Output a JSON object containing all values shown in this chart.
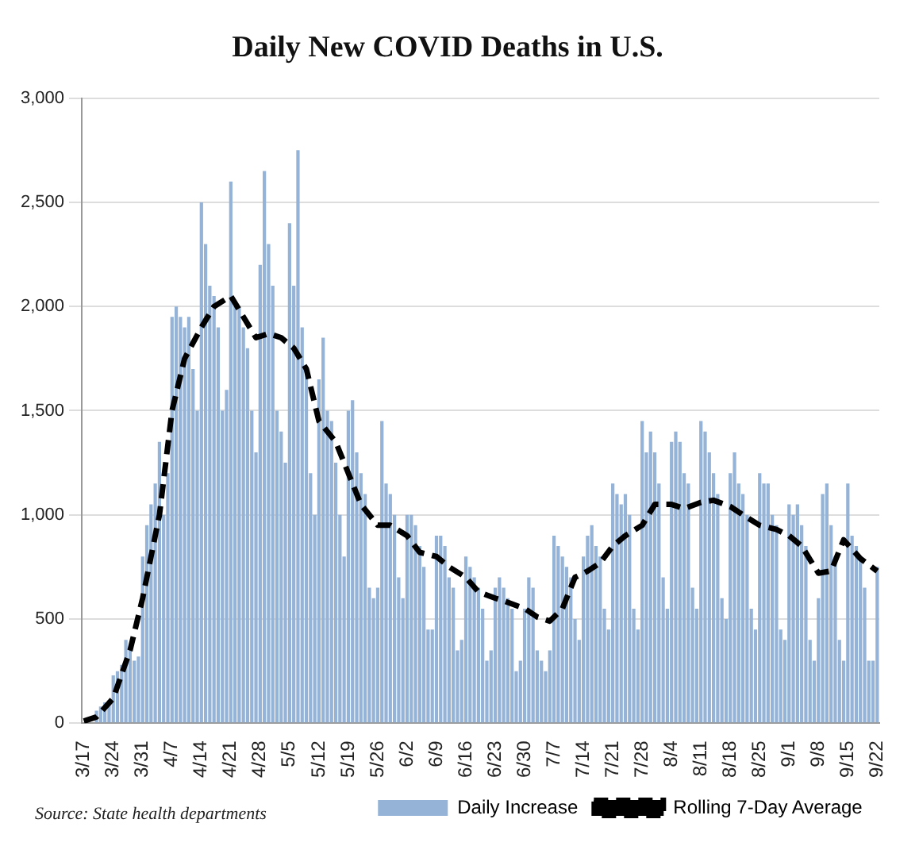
{
  "chart_data": {
    "type": "bar",
    "title": "Daily New COVID Deaths in U.S.",
    "categories": [
      "3/17",
      null,
      null,
      null,
      null,
      null,
      null,
      "3/24",
      null,
      null,
      null,
      null,
      null,
      null,
      "3/31",
      null,
      null,
      null,
      null,
      null,
      null,
      "4/7",
      null,
      null,
      null,
      null,
      null,
      null,
      "4/14",
      null,
      null,
      null,
      null,
      null,
      null,
      "4/21",
      null,
      null,
      null,
      null,
      null,
      null,
      "4/28",
      null,
      null,
      null,
      null,
      null,
      null,
      "5/5",
      null,
      null,
      null,
      null,
      null,
      null,
      "5/12",
      null,
      null,
      null,
      null,
      null,
      null,
      "5/19",
      null,
      null,
      null,
      null,
      null,
      null,
      "5/26",
      null,
      null,
      null,
      null,
      null,
      null,
      "6/2",
      null,
      null,
      null,
      null,
      null,
      null,
      "6/9",
      null,
      null,
      null,
      null,
      null,
      null,
      "6/16",
      null,
      null,
      null,
      null,
      null,
      null,
      "6/23",
      null,
      null,
      null,
      null,
      null,
      null,
      "6/30",
      null,
      null,
      null,
      null,
      null,
      null,
      "7/7",
      null,
      null,
      null,
      null,
      null,
      null,
      "7/14",
      null,
      null,
      null,
      null,
      null,
      null,
      "7/21",
      null,
      null,
      null,
      null,
      null,
      null,
      "7/28",
      null,
      null,
      null,
      null,
      null,
      null,
      "8/4",
      null,
      null,
      null,
      null,
      null,
      null,
      "8/11",
      null,
      null,
      null,
      null,
      null,
      null,
      "8/18",
      null,
      null,
      null,
      null,
      null,
      null,
      "8/25",
      null,
      null,
      null,
      null,
      null,
      null,
      "9/1",
      null,
      null,
      null,
      null,
      null,
      null,
      "9/8",
      null,
      null,
      null,
      null,
      null,
      null,
      "9/15",
      null,
      null,
      null,
      null,
      null,
      null,
      "9/22"
    ],
    "series": [
      {
        "name": "Daily Increase",
        "color": "#95b3d7",
        "values": [
          null,
          null,
          null,
          60,
          80,
          100,
          110,
          230,
          250,
          280,
          400,
          350,
          300,
          320,
          800,
          950,
          1050,
          1150,
          1350,
          1000,
          1200,
          1950,
          2000,
          1950,
          1900,
          1950,
          1700,
          1500,
          2500,
          2300,
          2100,
          2050,
          1900,
          1500,
          1600,
          2600,
          2000,
          2000,
          1900,
          1800,
          1500,
          1300,
          2200,
          2650,
          2300,
          2100,
          1500,
          1400,
          1250,
          2400,
          2100,
          2750,
          1900,
          1700,
          1200,
          1000,
          1650,
          1850,
          1500,
          1450,
          1250,
          1000,
          800,
          1500,
          1550,
          1300,
          1200,
          1100,
          650,
          600,
          650,
          1450,
          1150,
          1100,
          1000,
          700,
          600,
          1000,
          1000,
          950,
          850,
          750,
          450,
          450,
          900,
          900,
          850,
          700,
          650,
          350,
          400,
          800,
          750,
          700,
          650,
          550,
          300,
          350,
          650,
          700,
          650,
          600,
          550,
          250,
          300,
          550,
          700,
          650,
          350,
          300,
          250,
          350,
          900,
          850,
          800,
          750,
          700,
          500,
          400,
          800,
          900,
          950,
          850,
          800,
          550,
          450,
          1150,
          1100,
          1050,
          1100,
          1000,
          550,
          450,
          1450,
          1300,
          1400,
          1300,
          1150,
          700,
          550,
          1350,
          1400,
          1350,
          1200,
          1150,
          650,
          550,
          1450,
          1400,
          1300,
          1200,
          1100,
          600,
          500,
          1200,
          1300,
          1150,
          1100,
          1000,
          550,
          450,
          1200,
          1150,
          1150,
          1000,
          950,
          450,
          400,
          1050,
          1000,
          1050,
          950,
          850,
          400,
          300,
          600,
          1100,
          1150,
          950,
          800,
          400,
          300,
          1150,
          900,
          850,
          800,
          650,
          300,
          300,
          750
        ]
      },
      {
        "name": "Rolling 7-Day Average",
        "type": "line",
        "color": "#000000",
        "line_style": "dashed",
        "marker": "none",
        "values": [
          10,
          null,
          null,
          30,
          null,
          null,
          null,
          120,
          null,
          null,
          null,
          350,
          null,
          null,
          600,
          null,
          null,
          null,
          1000,
          null,
          null,
          1500,
          null,
          null,
          1750,
          null,
          null,
          null,
          1900,
          null,
          null,
          2000,
          null,
          null,
          null,
          2050,
          null,
          null,
          1950,
          null,
          null,
          1850,
          null,
          null,
          1870,
          null,
          null,
          1850,
          null,
          null,
          1800,
          null,
          null,
          1700,
          null,
          null,
          1450,
          null,
          null,
          null,
          1350,
          null,
          null,
          1200,
          null,
          null,
          1050,
          null,
          null,
          null,
          950,
          null,
          null,
          950,
          null,
          null,
          null,
          900,
          null,
          null,
          820,
          null,
          null,
          null,
          800,
          null,
          null,
          750,
          null,
          null,
          null,
          700,
          null,
          null,
          630,
          null,
          null,
          null,
          600,
          null,
          null,
          580,
          null,
          null,
          null,
          550,
          null,
          null,
          510,
          null,
          null,
          490,
          null,
          null,
          550,
          null,
          null,
          700,
          null,
          null,
          730,
          null,
          null,
          770,
          null,
          null,
          850,
          null,
          null,
          900,
          null,
          null,
          null,
          950,
          null,
          null,
          1050,
          null,
          null,
          null,
          1050,
          null,
          null,
          1030,
          null,
          null,
          null,
          1060,
          null,
          null,
          1070,
          null,
          null,
          null,
          1040,
          null,
          null,
          1000,
          null,
          null,
          null,
          950,
          null,
          null,
          null,
          930,
          null,
          null,
          900,
          null,
          null,
          850,
          null,
          null,
          null,
          720,
          null,
          null,
          730,
          null,
          null,
          880,
          null,
          null,
          null,
          790,
          null,
          null,
          null,
          730
        ]
      }
    ],
    "ylim": [
      0,
      3000
    ],
    "yticks": [
      {
        "value": 0,
        "label": "0"
      },
      {
        "value": 500,
        "label": "500"
      },
      {
        "value": 1000,
        "label": "1,000"
      },
      {
        "value": 1500,
        "label": "1,500"
      },
      {
        "value": 2000,
        "label": "2,000"
      },
      {
        "value": 2500,
        "label": "2,500"
      },
      {
        "value": 3000,
        "label": "3,000"
      }
    ],
    "grid": "y",
    "legend": "bottom",
    "annotations": [
      "Source: State health departments"
    ]
  }
}
